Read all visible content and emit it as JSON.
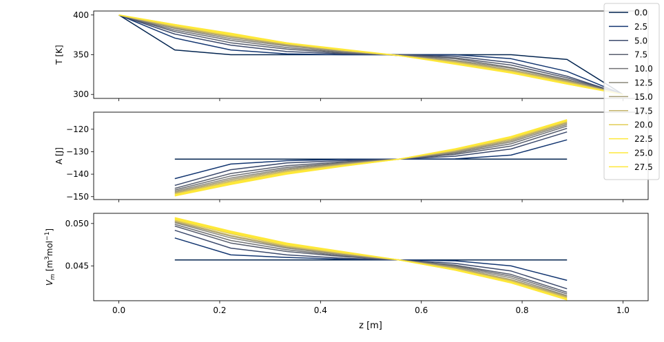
{
  "chart_data": {
    "type": "line",
    "legend_placement": "right",
    "legend_colormap": "cividis",
    "series_colors": [
      "#00224e",
      "#123570",
      "#3b496c",
      "#575d6d",
      "#707173",
      "#8a8779",
      "#a59c74",
      "#c3b369",
      "#e1cc55",
      "#fee838",
      "#fde838",
      "#fee838"
    ],
    "x": [
      0.0,
      0.111,
      0.222,
      0.333,
      0.444,
      0.556,
      0.667,
      0.778,
      0.889,
      1.0
    ],
    "xlabel": "z [m]",
    "xlim": [
      -0.05,
      1.05
    ],
    "xticks": [
      "0.0",
      "0.2",
      "0.4",
      "0.6",
      "0.8",
      "1.0"
    ],
    "legend": [
      "0.0",
      "2.5",
      "5.0",
      "7.5",
      "10.0",
      "12.5",
      "15.0",
      "17.5",
      "20.0",
      "22.5",
      "25.0",
      "27.5"
    ],
    "panels": [
      {
        "ylabel": "T [K]",
        "ylim": [
          295,
          405
        ],
        "yticks": [
          "300",
          "350",
          "400"
        ],
        "series": [
          {
            "name": "0.0",
            "values": [
              400,
              356,
              350,
              350,
              350,
              350,
              350,
              350,
              344,
              300
            ]
          },
          {
            "name": "2.5",
            "values": [
              400,
              371,
              356,
              351,
              350,
              350,
              350,
              345,
              329,
              300
            ]
          },
          {
            "name": "5.0",
            "values": [
              400,
              376,
              362,
              354,
              351,
              350,
              348,
              340,
              323,
              300
            ]
          },
          {
            "name": "7.5",
            "values": [
              400,
              379,
              365,
              357,
              352,
              350,
              346,
              337,
              321,
              300
            ]
          },
          {
            "name": "10.0",
            "values": [
              400,
              381,
              368,
              359,
              353,
              349,
              345,
              334,
              319,
              300
            ]
          },
          {
            "name": "12.5",
            "values": [
              400,
              383,
              370,
              361,
              354,
              349,
              343,
              333,
              318,
              300
            ]
          },
          {
            "name": "15.0",
            "values": [
              400,
              384,
              372,
              362,
              355,
              349,
              342,
              331,
              317,
              300
            ]
          },
          {
            "name": "17.5",
            "values": [
              400,
              385,
              373,
              363,
              355,
              349,
              341,
              330,
              316,
              300
            ]
          },
          {
            "name": "20.0",
            "values": [
              400,
              386,
              374,
              364,
              356,
              349,
              340,
              329,
              315,
              300
            ]
          },
          {
            "name": "22.5",
            "values": [
              400,
              387,
              375,
              364,
              356,
              349,
              339,
              328,
              314,
              300
            ]
          },
          {
            "name": "25.0",
            "values": [
              400,
              388,
              376,
              365,
              356,
              349,
              339,
              327,
              313,
              300
            ]
          },
          {
            "name": "27.5",
            "values": [
              400,
              388,
              377,
              365,
              357,
              349,
              338,
              327,
              313,
              300
            ]
          }
        ]
      },
      {
        "ylabel": "A [J]",
        "ylim": [
          -151.3,
          -112.4
        ],
        "yticks": [
          "-150",
          "-140",
          "-130",
          "-120"
        ],
        "series": [
          {
            "name": "0.0",
            "values": [
              null,
              -133.3,
              -133.3,
              -133.3,
              -133.3,
              -133.3,
              -133.3,
              -133.3,
              -133.3,
              null
            ]
          },
          {
            "name": "2.5",
            "values": [
              null,
              -142.0,
              -135.5,
              -134.0,
              -133.5,
              -133.3,
              -133.2,
              -131.5,
              -124.7,
              null
            ]
          },
          {
            "name": "5.0",
            "values": [
              null,
              -145.0,
              -138.0,
              -135.0,
              -134.0,
              -133.3,
              -132.0,
              -128.8,
              -121.2,
              null
            ]
          },
          {
            "name": "7.5",
            "values": [
              null,
              -146.3,
              -139.7,
              -136.2,
              -134.5,
              -133.3,
              -131.2,
              -127.5,
              -119.6,
              null
            ]
          },
          {
            "name": "10.0",
            "values": [
              null,
              -147.0,
              -140.8,
              -137.0,
              -134.9,
              -133.3,
              -130.7,
              -126.5,
              -118.6,
              null
            ]
          },
          {
            "name": "12.5",
            "values": [
              null,
              -147.6,
              -141.7,
              -137.6,
              -135.2,
              -133.3,
              -130.3,
              -125.7,
              -117.9,
              null
            ]
          },
          {
            "name": "15.0",
            "values": [
              null,
              -148.1,
              -142.4,
              -138.1,
              -135.5,
              -133.3,
              -129.9,
              -125.1,
              -117.3,
              null
            ]
          },
          {
            "name": "17.5",
            "values": [
              null,
              -148.5,
              -143.0,
              -138.6,
              -135.8,
              -133.3,
              -129.6,
              -124.6,
              -116.9,
              null
            ]
          },
          {
            "name": "20.0",
            "values": [
              null,
              -148.9,
              -143.5,
              -139.0,
              -136.0,
              -133.3,
              -129.3,
              -124.2,
              -116.5,
              null
            ]
          },
          {
            "name": "22.5",
            "values": [
              null,
              -149.2,
              -143.9,
              -139.4,
              -136.2,
              -133.3,
              -129.1,
              -123.8,
              -116.2,
              null
            ]
          },
          {
            "name": "25.0",
            "values": [
              null,
              -149.5,
              -144.3,
              -139.7,
              -136.4,
              -133.3,
              -128.9,
              -123.5,
              -116.0,
              null
            ]
          },
          {
            "name": "27.5",
            "values": [
              null,
              -149.7,
              -144.6,
              -140.0,
              -136.5,
              -133.3,
              -128.7,
              -123.2,
              -115.7,
              null
            ]
          }
        ]
      },
      {
        "ylabel": "V_m [m3mol-1]",
        "ylabel_parts": [
          "V",
          "m",
          " [m",
          "3",
          "mol",
          "−1",
          "]"
        ],
        "ylim": [
          0.0409,
          0.0512
        ],
        "yticks": [
          "0.045",
          "0.050"
        ],
        "series": [
          {
            "name": "0.0",
            "values": [
              null,
              0.0457,
              0.0457,
              0.0457,
              0.0457,
              0.0457,
              0.0457,
              0.0457,
              0.0457,
              null
            ]
          },
          {
            "name": "2.5",
            "values": [
              null,
              0.0483,
              0.0463,
              0.046,
              0.0458,
              0.0457,
              0.0456,
              0.045,
              0.0433,
              null
            ]
          },
          {
            "name": "5.0",
            "values": [
              null,
              0.0492,
              0.0471,
              0.0463,
              0.0459,
              0.0457,
              0.0453,
              0.0444,
              0.0423,
              null
            ]
          },
          {
            "name": "7.5",
            "values": [
              null,
              0.0497,
              0.0477,
              0.0467,
              0.0461,
              0.0457,
              0.0451,
              0.044,
              0.0419,
              null
            ]
          },
          {
            "name": "10.0",
            "values": [
              null,
              0.0499,
              0.048,
              0.0469,
              0.0462,
              0.0457,
              0.045,
              0.0438,
              0.0417,
              null
            ]
          },
          {
            "name": "12.5",
            "values": [
              null,
              0.0501,
              0.0483,
              0.0471,
              0.0463,
              0.0457,
              0.0449,
              0.0436,
              0.0415,
              null
            ]
          },
          {
            "name": "15.0",
            "values": [
              null,
              0.0502,
              0.0485,
              0.0472,
              0.0464,
              0.0457,
              0.0448,
              0.0434,
              0.0414,
              null
            ]
          },
          {
            "name": "17.5",
            "values": [
              null,
              0.0503,
              0.0486,
              0.0473,
              0.0465,
              0.0457,
              0.0447,
              0.0433,
              0.0413,
              null
            ]
          },
          {
            "name": "20.0",
            "values": [
              null,
              0.0504,
              0.0488,
              0.0474,
              0.0465,
              0.0457,
              0.0446,
              0.0432,
              0.0412,
              null
            ]
          },
          {
            "name": "22.5",
            "values": [
              null,
              0.0505,
              0.0489,
              0.0475,
              0.0466,
              0.0457,
              0.0446,
              0.0431,
              0.0411,
              null
            ]
          },
          {
            "name": "25.0",
            "values": [
              null,
              0.0506,
              0.049,
              0.0476,
              0.0466,
              0.0457,
              0.0445,
              0.043,
              0.041,
              null
            ]
          },
          {
            "name": "27.5",
            "values": [
              null,
              0.0507,
              0.0491,
              0.0477,
              0.0467,
              0.0457,
              0.0445,
              0.043,
              0.041,
              null
            ]
          }
        ]
      }
    ]
  }
}
